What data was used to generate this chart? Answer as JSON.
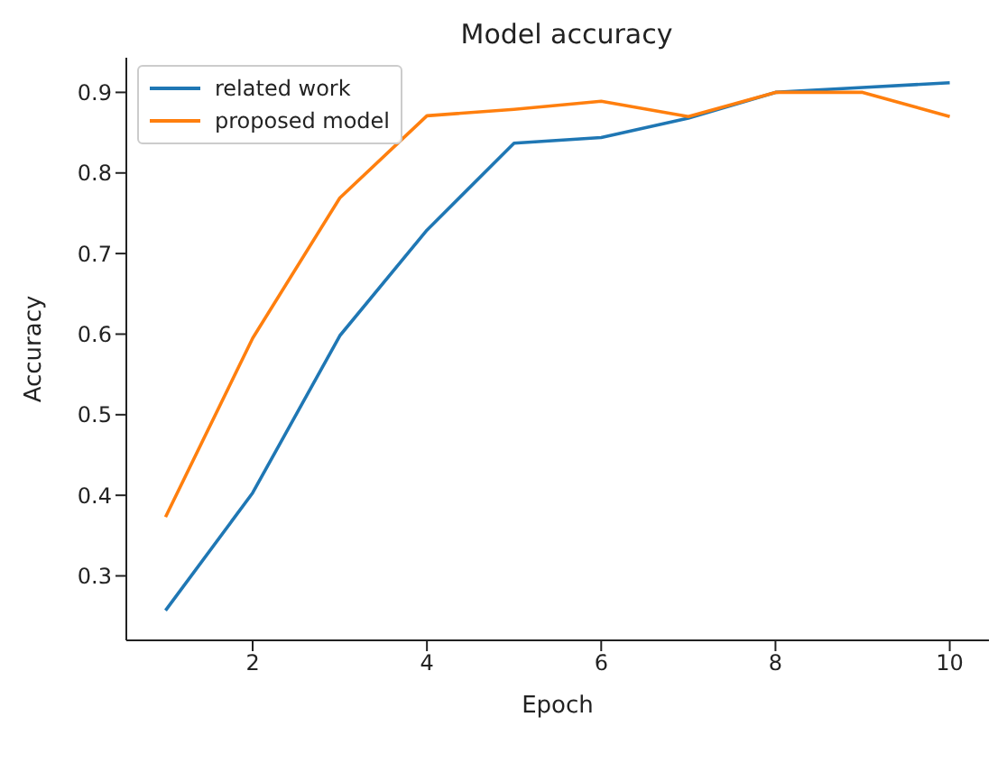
{
  "chart_data": {
    "type": "line",
    "title": "Model accuracy",
    "xlabel": "Epoch",
    "ylabel": "Accuracy",
    "x": [
      1,
      2,
      3,
      4,
      5,
      6,
      7,
      8,
      9,
      10
    ],
    "series": [
      {
        "name": "related work",
        "color": "#1f77b4",
        "values": [
          0.257,
          0.403,
          0.598,
          0.729,
          0.837,
          0.844,
          0.868,
          0.9,
          0.906,
          0.912
        ]
      },
      {
        "name": "proposed model",
        "color": "#ff7f0e",
        "values": [
          0.373,
          0.595,
          0.769,
          0.871,
          0.879,
          0.889,
          0.87,
          0.9,
          0.9,
          0.87
        ]
      }
    ],
    "xlim": [
      0.55,
      10.45
    ],
    "xticks": [
      2,
      4,
      6,
      8,
      10
    ],
    "ylim": [
      0.22,
      0.943
    ],
    "yticks": [
      0.3,
      0.4,
      0.5,
      0.6,
      0.7,
      0.8,
      0.9
    ],
    "grid": false,
    "legend": "top left",
    "marker": "none",
    "line_style": "solid"
  }
}
